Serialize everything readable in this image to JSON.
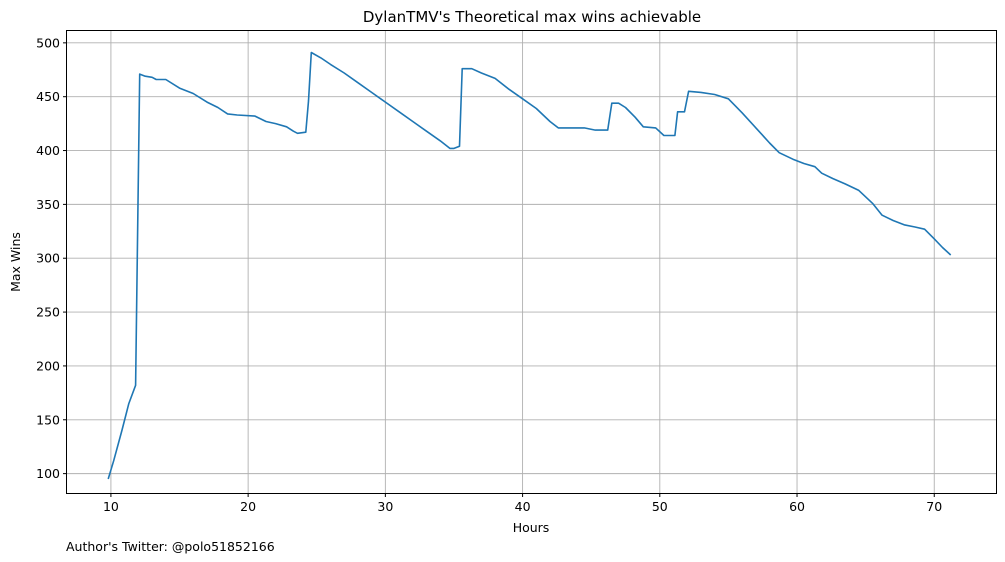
{
  "chart_data": {
    "type": "line",
    "title": "DylanTMV's Theoretical max wins achievable",
    "xlabel": "Hours",
    "ylabel": "Max Wins",
    "footnote": "Author's Twitter: @polo51852166",
    "xlim": [
      6.8,
      74.5
    ],
    "ylim": [
      82,
      511
    ],
    "x_ticks": [
      10,
      20,
      30,
      40,
      50,
      60,
      70
    ],
    "y_ticks": [
      100,
      150,
      200,
      250,
      300,
      350,
      400,
      450,
      500
    ],
    "grid": true,
    "line_color": "#1f77b4",
    "grid_color": "#b0b0b0",
    "series": [
      {
        "points": [
          [
            9.8,
            95
          ],
          [
            10.2,
            112
          ],
          [
            10.8,
            140
          ],
          [
            11.3,
            165
          ],
          [
            11.8,
            182
          ],
          [
            12.1,
            471
          ],
          [
            12.5,
            469
          ],
          [
            13.0,
            468
          ],
          [
            13.3,
            466
          ],
          [
            14.0,
            466
          ],
          [
            15.0,
            458
          ],
          [
            16.0,
            453
          ],
          [
            17.0,
            445
          ],
          [
            17.8,
            440
          ],
          [
            18.5,
            434
          ],
          [
            19.2,
            433
          ],
          [
            20.5,
            432
          ],
          [
            21.3,
            427
          ],
          [
            22.0,
            425
          ],
          [
            22.8,
            422
          ],
          [
            23.3,
            418
          ],
          [
            23.6,
            416
          ],
          [
            24.2,
            417
          ],
          [
            24.4,
            446
          ],
          [
            24.6,
            491
          ],
          [
            25.3,
            486
          ],
          [
            26.0,
            480
          ],
          [
            27.0,
            472
          ],
          [
            28.0,
            463
          ],
          [
            29.0,
            454
          ],
          [
            30.0,
            445
          ],
          [
            31.0,
            436
          ],
          [
            32.0,
            427
          ],
          [
            33.0,
            418
          ],
          [
            34.0,
            409
          ],
          [
            34.7,
            402
          ],
          [
            35.0,
            402
          ],
          [
            35.4,
            404
          ],
          [
            35.6,
            476
          ],
          [
            36.3,
            476
          ],
          [
            37.0,
            472
          ],
          [
            38.0,
            467
          ],
          [
            39.0,
            457
          ],
          [
            40.0,
            448
          ],
          [
            41.0,
            439
          ],
          [
            42.0,
            427
          ],
          [
            42.6,
            421
          ],
          [
            43.5,
            421
          ],
          [
            44.5,
            421
          ],
          [
            45.3,
            419
          ],
          [
            46.2,
            419
          ],
          [
            46.5,
            444
          ],
          [
            47.0,
            444
          ],
          [
            47.5,
            440
          ],
          [
            48.2,
            431
          ],
          [
            48.8,
            422
          ],
          [
            49.7,
            421
          ],
          [
            50.3,
            414
          ],
          [
            51.1,
            414
          ],
          [
            51.3,
            436
          ],
          [
            51.8,
            436
          ],
          [
            52.1,
            455
          ],
          [
            53.0,
            454
          ],
          [
            54.0,
            452
          ],
          [
            55.0,
            448
          ],
          [
            56.0,
            435
          ],
          [
            57.0,
            421
          ],
          [
            58.0,
            407
          ],
          [
            58.7,
            398
          ],
          [
            59.7,
            392
          ],
          [
            60.5,
            388
          ],
          [
            61.3,
            385
          ],
          [
            61.8,
            379
          ],
          [
            62.6,
            374
          ],
          [
            63.5,
            369
          ],
          [
            64.5,
            363
          ],
          [
            65.5,
            351
          ],
          [
            66.2,
            340
          ],
          [
            67.0,
            335
          ],
          [
            67.8,
            331
          ],
          [
            68.6,
            329
          ],
          [
            69.3,
            327
          ],
          [
            70.0,
            318
          ],
          [
            70.6,
            310
          ],
          [
            71.2,
            303
          ]
        ]
      }
    ]
  }
}
